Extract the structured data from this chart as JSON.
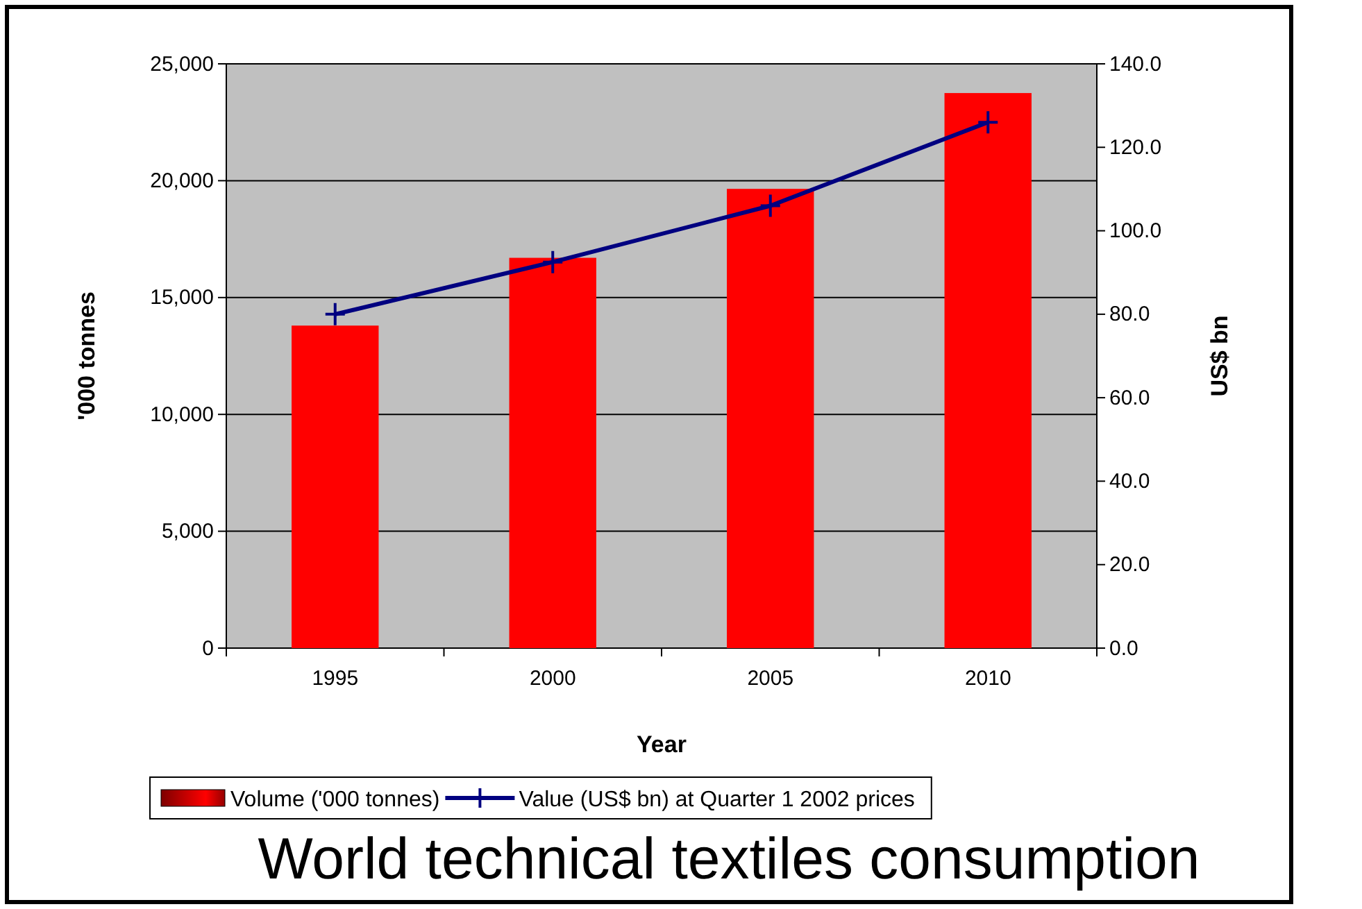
{
  "chart_data": {
    "type": "bar",
    "title": "World technical textiles consumption",
    "xlabel": "Year",
    "ylabel": "'000 tonnes",
    "y2label": "US$ bn",
    "categories": [
      "1995",
      "2000",
      "2005",
      "2010"
    ],
    "series": [
      {
        "name": "Volume ('000 tonnes)",
        "color": "#ff0000",
        "values": [
          13800,
          16700,
          19650,
          23750
        ]
      },
      {
        "name": "Value (US$ bn) at Quarter 1 2002 prices",
        "type": "line",
        "axis": "y2",
        "color": "#000080",
        "values": [
          80,
          92.5,
          106,
          126
        ]
      }
    ],
    "ylim": [
      0,
      25000
    ],
    "yticks": [
      {
        "value": 0,
        "label": "0"
      },
      {
        "value": 5000,
        "label": "5,000"
      },
      {
        "value": 10000,
        "label": "10,000"
      },
      {
        "value": 15000,
        "label": "15,000"
      },
      {
        "value": 20000,
        "label": "20,000"
      },
      {
        "value": 25000,
        "label": "25,000"
      }
    ],
    "y2lim": [
      0,
      140
    ],
    "y2ticks": [
      {
        "value": 0,
        "label": "0.0"
      },
      {
        "value": 20,
        "label": "20.0"
      },
      {
        "value": 40,
        "label": "40.0"
      },
      {
        "value": 60,
        "label": "60.0"
      },
      {
        "value": 80,
        "label": "80.0"
      },
      {
        "value": 100,
        "label": "100.0"
      },
      {
        "value": 120,
        "label": "120.0"
      },
      {
        "value": 140,
        "label": "140.0"
      }
    ],
    "grid": "y",
    "legend": "bottom",
    "marker": "cross",
    "line_style": "solid"
  }
}
